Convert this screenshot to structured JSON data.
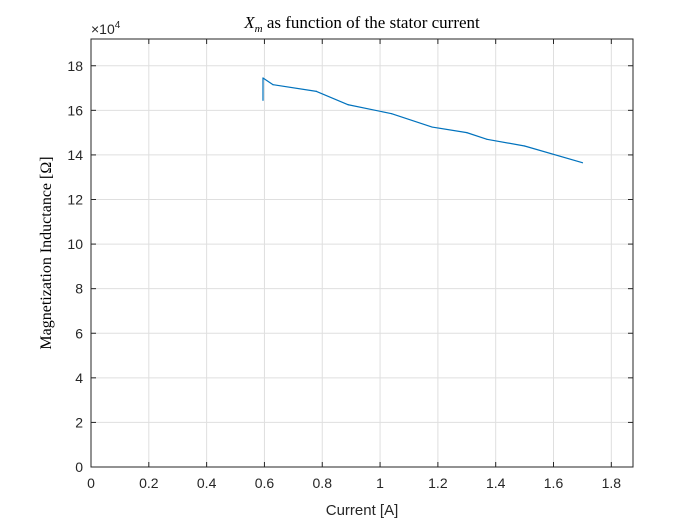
{
  "chart_data": {
    "type": "line",
    "title": {
      "symbol": "X",
      "subscript": "m",
      "text": " as function of the stator current"
    },
    "xlabel": "Current [A]",
    "ylabel": "Magnetization Inductance [Ω]",
    "y_exponent_label": {
      "base": "×10",
      "power": "4"
    },
    "xlim": [
      0,
      1.875
    ],
    "ylim": [
      0,
      19.2
    ],
    "xticks": [
      0,
      0.2,
      0.4,
      0.6,
      0.8,
      1,
      1.2,
      1.4,
      1.6,
      1.8
    ],
    "xtick_labels": [
      "0",
      "0.2",
      "0.4",
      "0.6",
      "0.8",
      "1",
      "1.2",
      "1.4",
      "1.6",
      "1.8"
    ],
    "yticks": [
      0,
      2,
      4,
      6,
      8,
      10,
      12,
      14,
      16,
      18
    ],
    "ytick_labels": [
      "0",
      "2",
      "4",
      "6",
      "8",
      "10",
      "12",
      "14",
      "16",
      "18"
    ],
    "grid": true,
    "series": [
      {
        "color": "#0072BD",
        "x": [
          0.595,
          0.595,
          0.63,
          0.78,
          0.89,
          1.04,
          1.18,
          1.3,
          1.37,
          1.5,
          1.7
        ],
        "y": [
          16.45,
          17.45,
          17.15,
          16.85,
          16.25,
          15.85,
          15.25,
          15.0,
          14.7,
          14.4,
          13.65
        ]
      }
    ]
  }
}
